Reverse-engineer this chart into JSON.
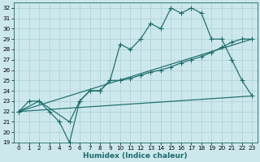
{
  "xlabel": "Humidex (Indice chaleur)",
  "bg_color": "#cce8ec",
  "grid_color": "#aacfd4",
  "line_color": "#1a6b6b",
  "xlim": [
    -0.5,
    23.5
  ],
  "ylim": [
    19,
    32.5
  ],
  "yticks": [
    19,
    20,
    21,
    22,
    23,
    24,
    25,
    26,
    27,
    28,
    29,
    30,
    31,
    32
  ],
  "xticks": [
    0,
    1,
    2,
    3,
    4,
    5,
    6,
    7,
    8,
    9,
    10,
    11,
    12,
    13,
    14,
    15,
    16,
    17,
    18,
    19,
    20,
    21,
    22,
    23
  ],
  "line1_x": [
    0,
    1,
    2,
    3,
    4,
    5,
    6,
    7,
    8,
    9,
    10,
    11,
    12,
    13,
    14,
    15,
    16,
    17,
    18,
    19,
    20,
    21,
    22,
    23
  ],
  "line1_y": [
    22,
    23,
    23,
    22,
    21,
    19,
    23,
    24,
    24,
    25,
    28.5,
    28,
    29,
    30.5,
    30,
    32,
    31.5,
    32,
    31.5,
    29,
    29,
    27,
    25,
    23.5
  ],
  "line2_x": [
    0,
    2,
    5,
    6,
    7,
    8,
    9,
    10,
    11,
    12,
    13,
    14,
    15,
    16,
    17,
    18,
    19,
    20,
    21,
    22,
    23
  ],
  "line2_y": [
    22,
    23,
    21,
    23,
    24,
    24,
    25,
    25,
    25.2,
    25.5,
    25.8,
    26,
    26.3,
    26.7,
    27,
    27.3,
    27.7,
    28.2,
    28.7,
    29,
    29
  ],
  "line3_x": [
    0,
    23
  ],
  "line3_y": [
    22,
    29
  ],
  "line4_x": [
    0,
    23
  ],
  "line4_y": [
    22,
    23.5
  ],
  "xlabel_fontsize": 6.5,
  "tick_fontsize": 5.2,
  "lw": 0.85,
  "ms": 2.8
}
